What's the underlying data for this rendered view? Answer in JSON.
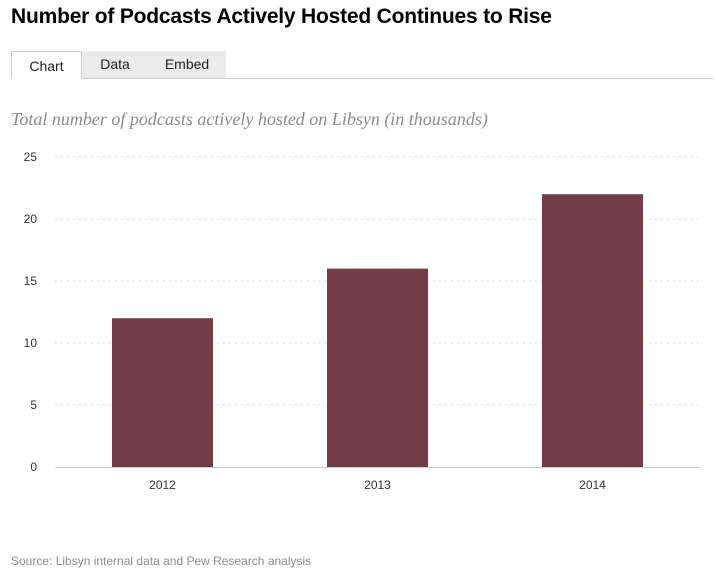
{
  "title": "Number of Podcasts Actively Hosted Continues to Rise",
  "tabs": [
    {
      "label": "Chart",
      "active": true
    },
    {
      "label": "Data",
      "active": false
    },
    {
      "label": "Embed",
      "active": false
    }
  ],
  "subtitle": "Total number of podcasts actively hosted on Libsyn (in thousands)",
  "source": "Source: Libsyn internal data and Pew Research analysis",
  "colors": {
    "bar": "#733c47",
    "axis": "#c4cfd4",
    "grid": "#d0d0d0",
    "tick_label": "#333333"
  },
  "chart_data": {
    "type": "bar",
    "categories": [
      "2012",
      "2013",
      "2014"
    ],
    "values": [
      12,
      16,
      22
    ],
    "title": "",
    "xlabel": "",
    "ylabel": "",
    "ylim": [
      0,
      25
    ],
    "yticks": [
      0,
      5,
      10,
      15,
      20,
      25
    ],
    "grid": true,
    "legend": "none"
  }
}
